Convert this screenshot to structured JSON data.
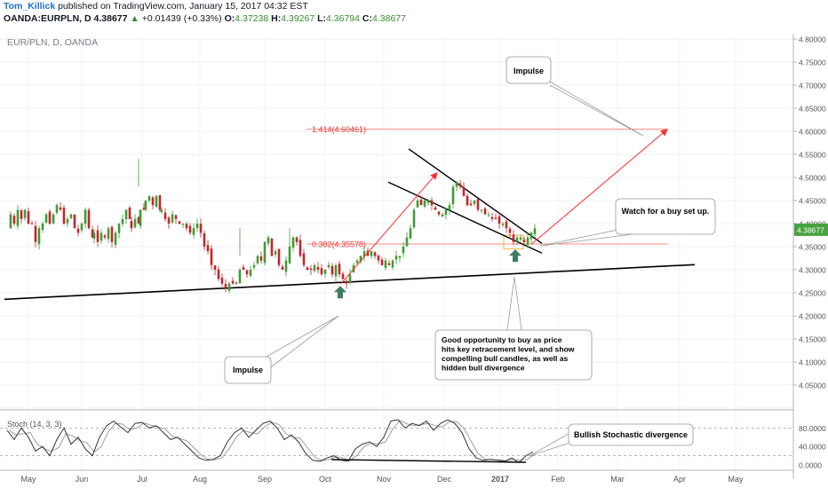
{
  "header": {
    "author": "Tom_Killick",
    "published": "published on TradingView.com, January 15, 2017 04:32 EST",
    "symbol": "OANDA:EURPLN, D",
    "last": "4.38677",
    "change_arrow": "▲",
    "change": "+0.01439 (+0.33%)",
    "o_label": "O:",
    "o_val": "4.37238",
    "h_label": "H:",
    "h_val": "4.39267",
    "l_label": "L:",
    "l_val": "4.36794",
    "c_label": "C:",
    "c_val": "4.38677"
  },
  "instrument_label": "EUR/PLN, D, OANDA",
  "colors": {
    "up_candle": "#3f9c35",
    "down_candle": "#c0262d",
    "price_badge": "#48a23f",
    "fib_line": "#ff8a80",
    "fib_text": "#e53935",
    "arrow": "#ff2d2d",
    "marker_arrow": "#3f7f5f",
    "trendline": "#000000",
    "stoch_k": "#333333",
    "stoch_d": "#9e9e9e"
  },
  "chart_data": {
    "type": "candlestick",
    "price_axis": {
      "min": 4.0,
      "max": 4.8,
      "ticks": [
        "4.80000",
        "4.75000",
        "4.70000",
        "4.65000",
        "4.60000",
        "4.55000",
        "4.50000",
        "4.45000",
        "4.40000",
        "4.35000",
        "4.30000",
        "4.25000",
        "4.20000",
        "4.15000",
        "4.10000",
        "4.05000"
      ],
      "current_price_label": "4.38677"
    },
    "time_axis": {
      "labels": [
        "May",
        "Jun",
        "Jul",
        "Aug",
        "Sep",
        "Oct",
        "Nov",
        "Dec",
        "2017",
        "Feb",
        "Mar",
        "Apr",
        "May"
      ],
      "bold_label": "2017"
    },
    "price_path": [
      [
        0,
        4.39
      ],
      [
        4,
        4.42
      ],
      [
        8,
        4.4
      ],
      [
        12,
        4.43
      ],
      [
        16,
        4.41
      ],
      [
        20,
        4.43
      ],
      [
        24,
        4.4
      ],
      [
        28,
        4.4
      ],
      [
        32,
        4.36
      ],
      [
        36,
        4.39
      ],
      [
        40,
        4.4
      ],
      [
        44,
        4.42
      ],
      [
        48,
        4.4
      ],
      [
        52,
        4.42
      ],
      [
        56,
        4.44
      ],
      [
        60,
        4.43
      ],
      [
        64,
        4.4
      ],
      [
        68,
        4.41
      ],
      [
        72,
        4.42
      ],
      [
        76,
        4.39
      ],
      [
        80,
        4.38
      ],
      [
        84,
        4.4
      ],
      [
        88,
        4.43
      ],
      [
        92,
        4.39
      ],
      [
        96,
        4.37
      ],
      [
        98,
        4.38
      ],
      [
        102,
        4.36
      ],
      [
        106,
        4.38
      ],
      [
        110,
        4.37
      ],
      [
        114,
        4.39
      ],
      [
        118,
        4.36
      ],
      [
        122,
        4.38
      ],
      [
        126,
        4.4
      ],
      [
        130,
        4.41
      ],
      [
        134,
        4.43
      ],
      [
        138,
        4.41
      ],
      [
        140,
        4.39
      ],
      [
        144,
        4.41
      ],
      [
        148,
        4.4
      ],
      [
        150,
        4.43
      ],
      [
        154,
        4.43
      ],
      [
        156,
        4.45
      ],
      [
        160,
        4.46
      ],
      [
        164,
        4.44
      ],
      [
        168,
        4.46
      ],
      [
        172,
        4.43
      ],
      [
        174,
        4.43
      ],
      [
        178,
        4.41
      ],
      [
        182,
        4.4
      ],
      [
        186,
        4.42
      ],
      [
        190,
        4.41
      ],
      [
        194,
        4.4
      ],
      [
        198,
        4.4
      ],
      [
        202,
        4.39
      ],
      [
        206,
        4.38
      ],
      [
        210,
        4.39
      ],
      [
        214,
        4.4
      ],
      [
        218,
        4.38
      ],
      [
        222,
        4.35
      ],
      [
        226,
        4.34
      ],
      [
        230,
        4.31
      ],
      [
        234,
        4.3
      ],
      [
        238,
        4.28
      ],
      [
        242,
        4.27
      ],
      [
        246,
        4.26
      ],
      [
        250,
        4.27
      ],
      [
        254,
        4.27
      ],
      [
        258,
        4.27
      ],
      [
        262,
        4.3
      ],
      [
        266,
        4.3
      ],
      [
        270,
        4.29
      ],
      [
        274,
        4.3
      ],
      [
        278,
        4.31
      ],
      [
        282,
        4.33
      ],
      [
        286,
        4.32
      ],
      [
        290,
        4.36
      ],
      [
        294,
        4.37
      ],
      [
        298,
        4.33
      ],
      [
        302,
        4.34
      ],
      [
        306,
        4.31
      ],
      [
        310,
        4.3
      ],
      [
        314,
        4.32
      ],
      [
        318,
        4.35
      ],
      [
        322,
        4.37
      ],
      [
        326,
        4.36
      ],
      [
        330,
        4.33
      ],
      [
        334,
        4.31
      ],
      [
        338,
        4.3
      ],
      [
        342,
        4.3
      ],
      [
        346,
        4.31
      ],
      [
        350,
        4.3
      ],
      [
        354,
        4.29
      ],
      [
        358,
        4.3
      ],
      [
        362,
        4.31
      ],
      [
        366,
        4.29
      ],
      [
        370,
        4.31
      ],
      [
        374,
        4.29
      ],
      [
        378,
        4.28
      ],
      [
        382,
        4.27
      ],
      [
        386,
        4.29
      ],
      [
        390,
        4.31
      ],
      [
        394,
        4.32
      ],
      [
        398,
        4.33
      ],
      [
        402,
        4.34
      ],
      [
        406,
        4.33
      ],
      [
        410,
        4.34
      ],
      [
        414,
        4.33
      ],
      [
        418,
        4.32
      ],
      [
        422,
        4.31
      ],
      [
        426,
        4.32
      ],
      [
        430,
        4.31
      ],
      [
        434,
        4.32
      ],
      [
        438,
        4.33
      ],
      [
        442,
        4.33
      ],
      [
        446,
        4.35
      ],
      [
        450,
        4.37
      ],
      [
        454,
        4.39
      ],
      [
        458,
        4.43
      ],
      [
        462,
        4.45
      ],
      [
        466,
        4.44
      ],
      [
        470,
        4.45
      ],
      [
        474,
        4.45
      ],
      [
        478,
        4.44
      ],
      [
        482,
        4.43
      ],
      [
        486,
        4.42
      ],
      [
        490,
        4.42
      ],
      [
        494,
        4.43
      ],
      [
        498,
        4.44
      ],
      [
        502,
        4.48
      ],
      [
        506,
        4.49
      ],
      [
        510,
        4.48
      ],
      [
        514,
        4.46
      ],
      [
        518,
        4.44
      ],
      [
        522,
        4.44
      ],
      [
        526,
        4.45
      ],
      [
        530,
        4.43
      ],
      [
        534,
        4.43
      ],
      [
        538,
        4.42
      ],
      [
        542,
        4.42
      ],
      [
        546,
        4.41
      ],
      [
        550,
        4.41
      ],
      [
        554,
        4.4
      ],
      [
        558,
        4.4
      ],
      [
        562,
        4.39
      ],
      [
        566,
        4.38
      ],
      [
        570,
        4.36
      ],
      [
        574,
        4.37
      ],
      [
        578,
        4.37
      ],
      [
        582,
        4.36
      ],
      [
        586,
        4.37
      ],
      [
        590,
        4.38
      ],
      [
        594,
        4.39
      ]
    ],
    "candle_spacing_px": 4,
    "notable_wicks": [
      [
        148,
        4.54
      ],
      [
        262,
        4.39
      ],
      [
        318,
        4.39
      ]
    ],
    "annotations": {
      "fib_levels": [
        {
          "label": "1.414(4.60461)",
          "price": 4.60461
        },
        {
          "label": "0.382(4.35578)",
          "price": 4.35578
        }
      ],
      "callouts": [
        {
          "id": "impulse-top",
          "text": "Impulse"
        },
        {
          "id": "buy-setup",
          "text": "Watch for a buy set up."
        },
        {
          "id": "impulse-bottom",
          "text": "Impulse"
        },
        {
          "id": "good-opportunity",
          "text": "Good opportunity to buy as price hits key retracement level, and show compelling bull candles, as well as hidden bull divergence"
        },
        {
          "id": "stoch-divergence",
          "text": "Bullish Stochastic divergence"
        }
      ]
    },
    "stochastic": {
      "label": "Stoch (14, 3, 3)",
      "axis_ticks": [
        "80.0000",
        "40.0000",
        "0.0000"
      ],
      "levels": [
        80,
        20
      ],
      "k_path": [
        [
          0,
          75
        ],
        [
          8,
          55
        ],
        [
          16,
          80
        ],
        [
          24,
          60
        ],
        [
          32,
          30
        ],
        [
          40,
          40
        ],
        [
          48,
          20
        ],
        [
          56,
          55
        ],
        [
          64,
          80
        ],
        [
          72,
          45
        ],
        [
          80,
          60
        ],
        [
          88,
          35
        ],
        [
          96,
          20
        ],
        [
          104,
          60
        ],
        [
          112,
          85
        ],
        [
          120,
          95
        ],
        [
          128,
          82
        ],
        [
          136,
          70
        ],
        [
          144,
          90
        ],
        [
          152,
          92
        ],
        [
          160,
          80
        ],
        [
          168,
          85
        ],
        [
          176,
          70
        ],
        [
          184,
          55
        ],
        [
          192,
          60
        ],
        [
          200,
          45
        ],
        [
          208,
          30
        ],
        [
          216,
          15
        ],
        [
          224,
          10
        ],
        [
          232,
          12
        ],
        [
          240,
          20
        ],
        [
          248,
          50
        ],
        [
          256,
          70
        ],
        [
          264,
          80
        ],
        [
          272,
          60
        ],
        [
          280,
          75
        ],
        [
          288,
          90
        ],
        [
          296,
          95
        ],
        [
          304,
          80
        ],
        [
          312,
          55
        ],
        [
          320,
          65
        ],
        [
          328,
          50
        ],
        [
          336,
          25
        ],
        [
          344,
          10
        ],
        [
          352,
          8
        ],
        [
          360,
          15
        ],
        [
          368,
          20
        ],
        [
          376,
          10
        ],
        [
          384,
          8
        ],
        [
          392,
          35
        ],
        [
          400,
          45
        ],
        [
          408,
          50
        ],
        [
          416,
          40
        ],
        [
          424,
          60
        ],
        [
          432,
          95
        ],
        [
          440,
          98
        ],
        [
          448,
          80
        ],
        [
          456,
          90
        ],
        [
          464,
          85
        ],
        [
          472,
          95
        ],
        [
          480,
          75
        ],
        [
          488,
          90
        ],
        [
          496,
          98
        ],
        [
          504,
          90
        ],
        [
          512,
          70
        ],
        [
          520,
          35
        ],
        [
          528,
          15
        ],
        [
          536,
          10
        ],
        [
          544,
          12
        ],
        [
          552,
          10
        ],
        [
          560,
          8
        ],
        [
          568,
          15
        ],
        [
          576,
          5
        ],
        [
          584,
          20
        ],
        [
          592,
          28
        ]
      ]
    }
  }
}
